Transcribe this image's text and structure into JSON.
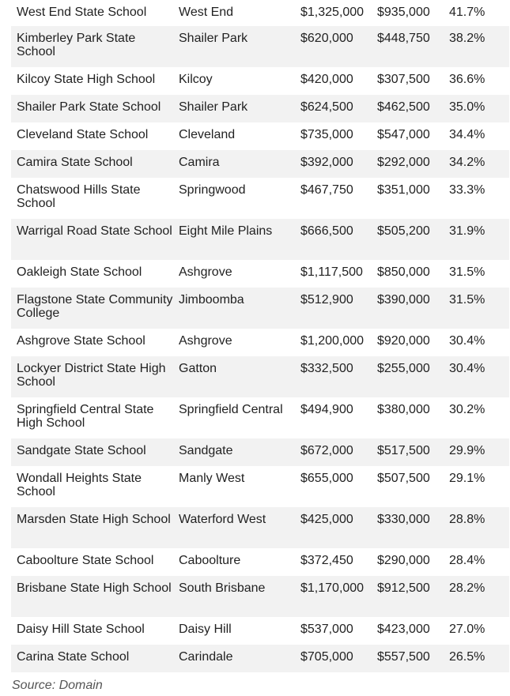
{
  "table": {
    "rows": [
      {
        "school": "West End State School",
        "suburb": "West End",
        "price_a": "$1,325,000",
        "price_b": "$935,000",
        "pct": "41.7%"
      },
      {
        "school": "Kimberley Park State School",
        "suburb": "Shailer Park",
        "price_a": "$620,000",
        "price_b": "$448,750",
        "pct": "38.2%"
      },
      {
        "school": "Kilcoy State High School",
        "suburb": "Kilcoy",
        "price_a": "$420,000",
        "price_b": "$307,500",
        "pct": "36.6%"
      },
      {
        "school": "Shailer Park State School",
        "suburb": "Shailer Park",
        "price_a": "$624,500",
        "price_b": "$462,500",
        "pct": "35.0%"
      },
      {
        "school": "Cleveland State School",
        "suburb": "Cleveland",
        "price_a": "$735,000",
        "price_b": "$547,000",
        "pct": "34.4%"
      },
      {
        "school": "Camira State School",
        "suburb": "Camira",
        "price_a": "$392,000",
        "price_b": "$292,000",
        "pct": "34.2%"
      },
      {
        "school": "Chatswood Hills State School",
        "suburb": "Springwood",
        "price_a": "$467,750",
        "price_b": "$351,000",
        "pct": "33.3%"
      },
      {
        "school": "Warrigal Road State School",
        "suburb": "Eight Mile Plains",
        "price_a": "$666,500",
        "price_b": "$505,200",
        "pct": "31.9%"
      },
      {
        "school": "Oakleigh State School",
        "suburb": "Ashgrove",
        "price_a": "$1,117,500",
        "price_b": "$850,000",
        "pct": "31.5%"
      },
      {
        "school": "Flagstone State Community College",
        "suburb": "Jimboomba",
        "price_a": "$512,900",
        "price_b": "$390,000",
        "pct": "31.5%"
      },
      {
        "school": "Ashgrove State School",
        "suburb": "Ashgrove",
        "price_a": "$1,200,000",
        "price_b": "$920,000",
        "pct": "30.4%"
      },
      {
        "school": "Lockyer District State High School",
        "suburb": "Gatton",
        "price_a": "$332,500",
        "price_b": "$255,000",
        "pct": "30.4%"
      },
      {
        "school": "Springfield Central State High School",
        "suburb": "Springfield Central",
        "price_a": "$494,900",
        "price_b": "$380,000",
        "pct": "30.2%"
      },
      {
        "school": "Sandgate State School",
        "suburb": "Sandgate",
        "price_a": "$672,000",
        "price_b": "$517,500",
        "pct": "29.9%"
      },
      {
        "school": "Wondall Heights State School",
        "suburb": "Manly West",
        "price_a": "$655,000",
        "price_b": "$507,500",
        "pct": "29.1%"
      },
      {
        "school": "Marsden State High School",
        "suburb": "Waterford West",
        "price_a": "$425,000",
        "price_b": "$330,000",
        "pct": "28.8%"
      },
      {
        "school": "Caboolture State School",
        "suburb": "Caboolture",
        "price_a": "$372,450",
        "price_b": "$290,000",
        "pct": "28.4%"
      },
      {
        "school": "Brisbane State High School",
        "suburb": "South Brisbane",
        "price_a": "$1,170,000",
        "price_b": "$912,500",
        "pct": "28.2%"
      },
      {
        "school": "Daisy Hill State School",
        "suburb": "Daisy Hill",
        "price_a": "$537,000",
        "price_b": "$423,000",
        "pct": "27.0%"
      },
      {
        "school": "Carina State School",
        "suburb": "Carindale",
        "price_a": "$705,000",
        "price_b": "$557,500",
        "pct": "26.5%"
      }
    ]
  },
  "source": "Source: Domain",
  "colors": {
    "row_shade": "#f2f2f2",
    "text": "#222222",
    "source_text": "#555555"
  }
}
